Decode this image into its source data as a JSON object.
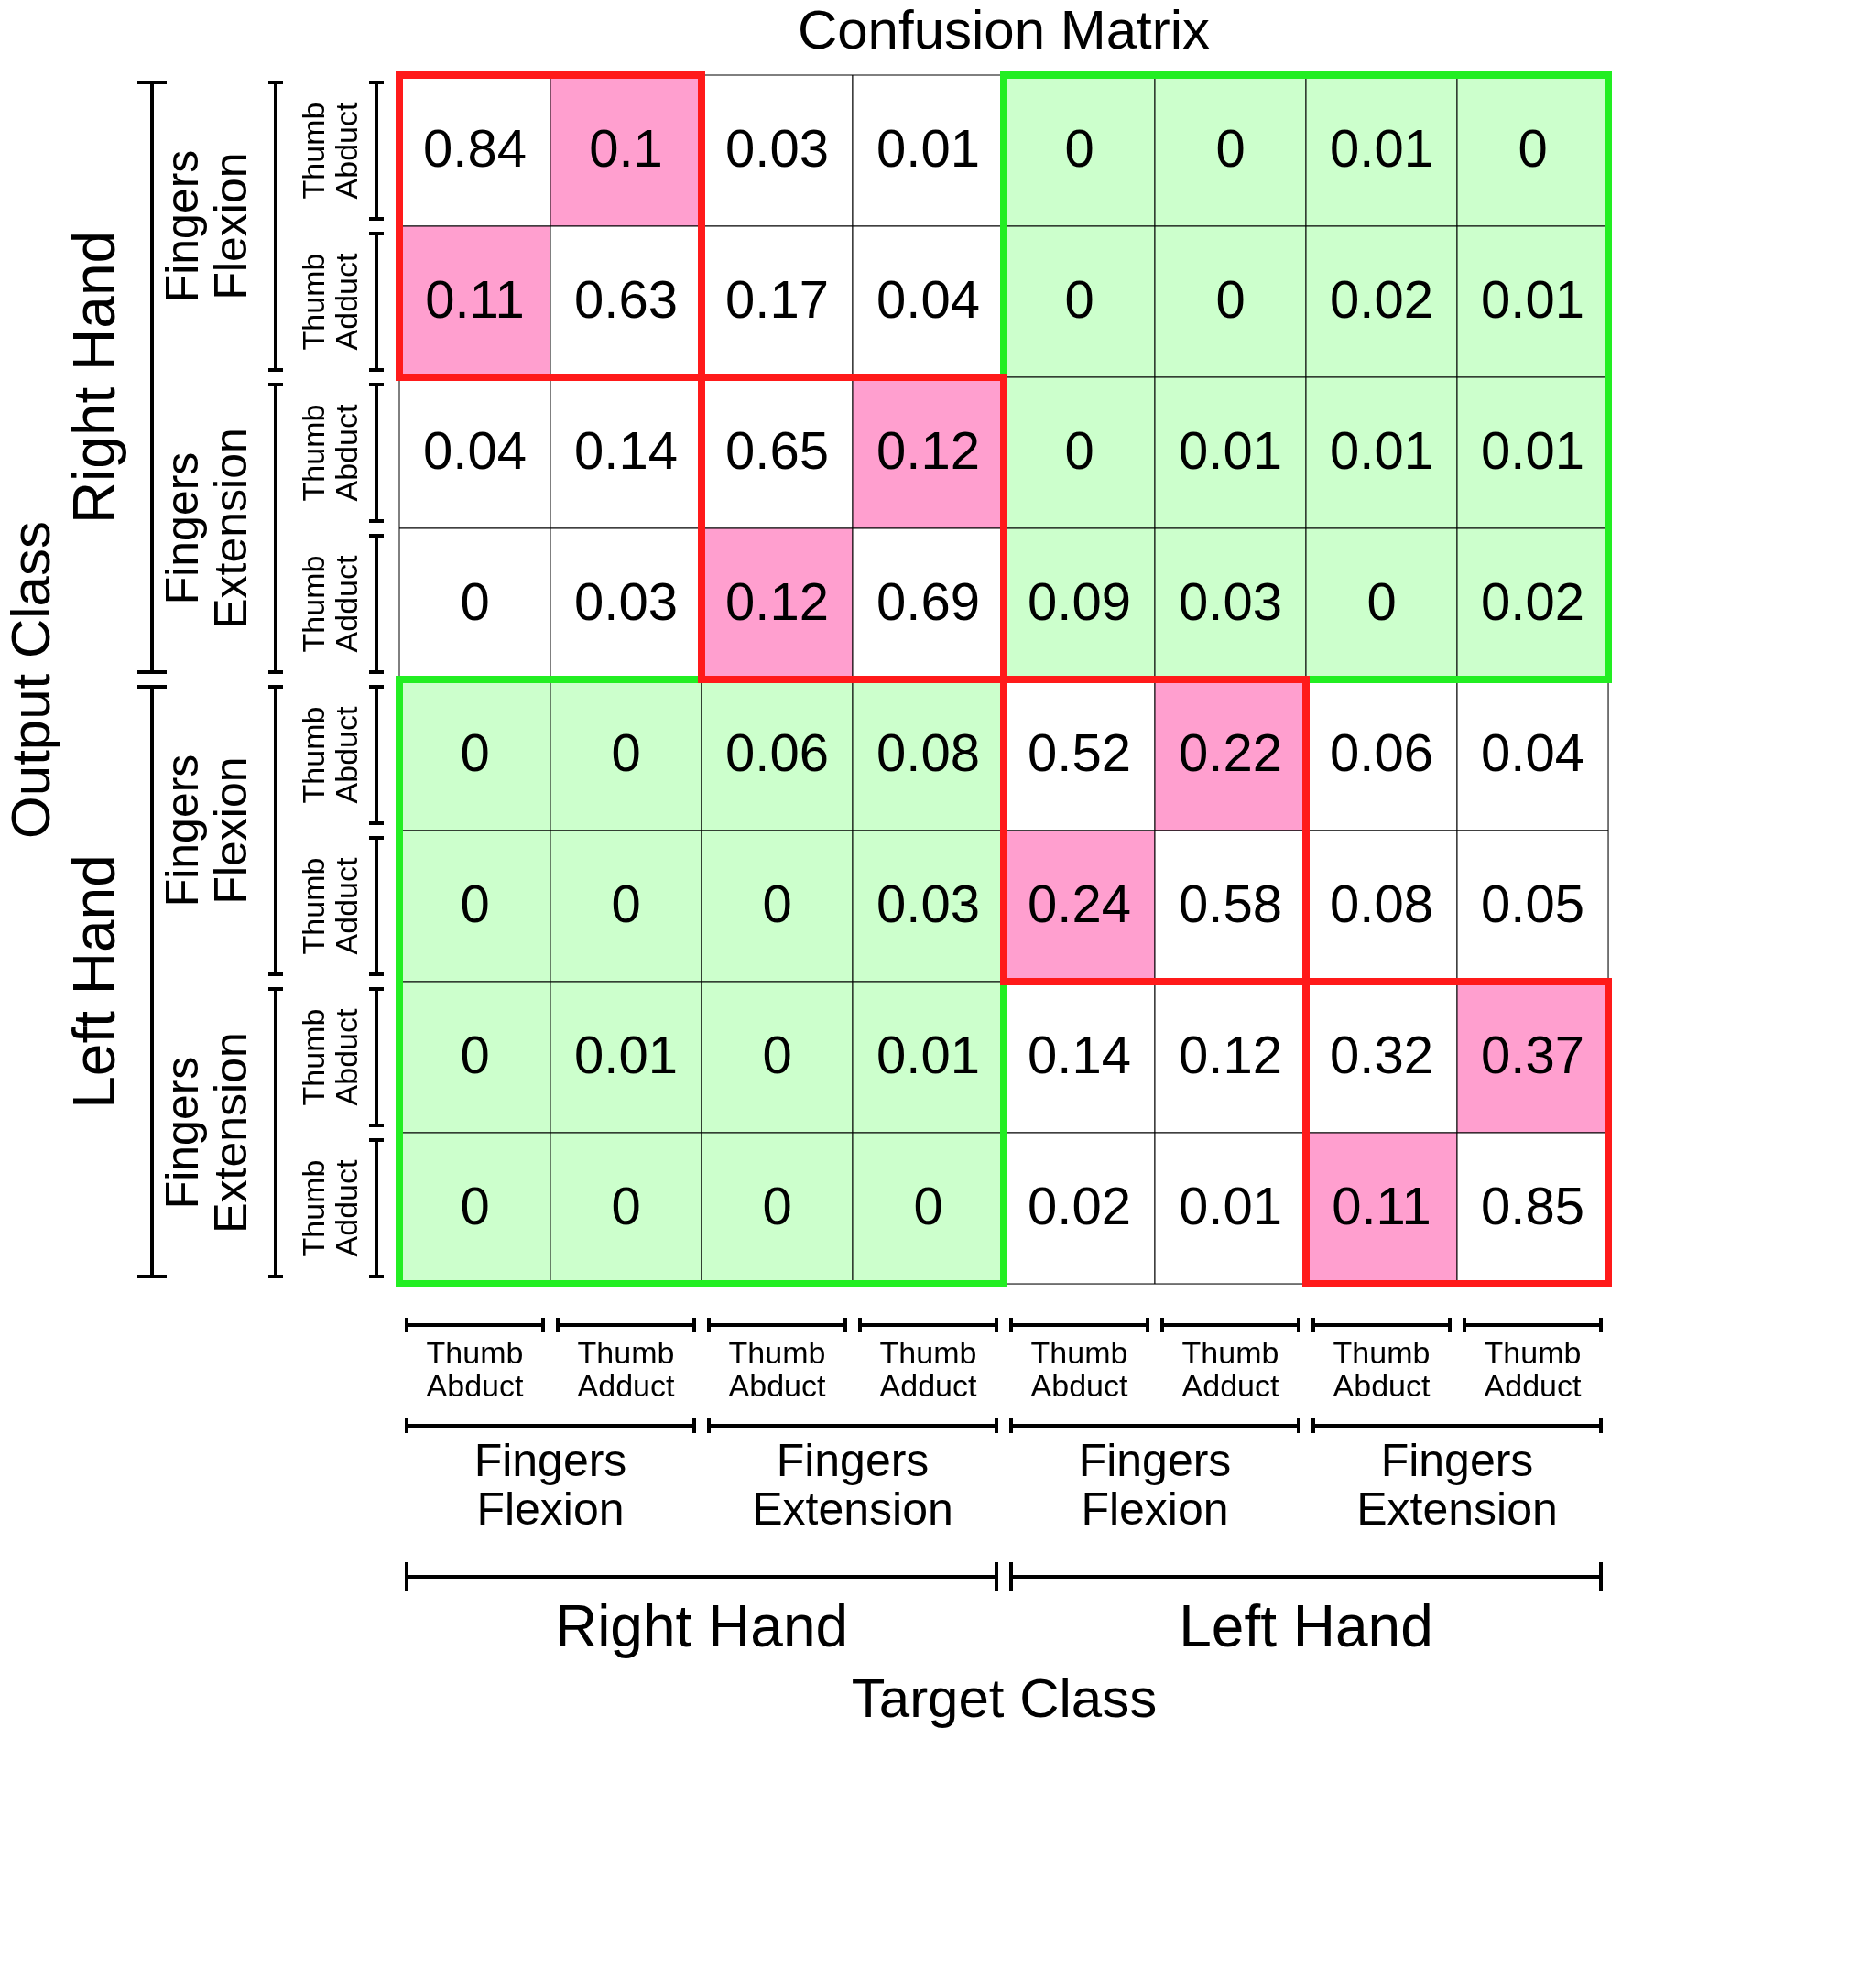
{
  "chart_data": {
    "type": "heatmap",
    "title": "Confusion Matrix",
    "xlabel": "Target Class",
    "ylabel": "Output Class",
    "categories": [
      "Thumb Abduct",
      "Thumb Adduct",
      "Thumb Abduct",
      "Thumb Adduct",
      "Thumb Abduct",
      "Thumb Adduct",
      "Thumb Abduct",
      "Thumb Adduct"
    ],
    "y_categories": [
      "Thumb Abduct",
      "Thumb Adduct",
      "Thumb Abduct",
      "Thumb Adduct",
      "Thumb Abduct",
      "Thumb Adduct",
      "Thumb Abduct",
      "Thumb Adduct"
    ],
    "annotations": [
      "Fingers Flexion",
      "Fingers Extension",
      "Fingers Flexion",
      "Fingers Extension",
      "Right Hand",
      "Left Hand"
    ],
    "cells": [
      [
        0.84,
        0.1,
        0.03,
        0.01,
        0,
        0,
        0.01,
        0
      ],
      [
        0.11,
        0.63,
        0.17,
        0.04,
        0,
        0,
        0.02,
        0.01
      ],
      [
        0.04,
        0.14,
        0.65,
        0.12,
        0,
        0.01,
        0.01,
        0.01
      ],
      [
        0,
        0.03,
        0.12,
        0.69,
        0.09,
        0.03,
        0,
        0.02
      ],
      [
        0,
        0,
        0.06,
        0.08,
        0.52,
        0.22,
        0.06,
        0.04
      ],
      [
        0,
        0,
        0,
        0.03,
        0.24,
        0.58,
        0.08,
        0.05
      ],
      [
        0,
        0.01,
        0,
        0.01,
        0.14,
        0.12,
        0.32,
        0.37
      ],
      [
        0,
        0,
        0,
        0,
        0.02,
        0.01,
        0.11,
        0.85
      ]
    ],
    "colors": [
      [
        "#ffffff",
        "#ff9fcf",
        "#ffffff",
        "#ffffff",
        "#ccffcc",
        "#ccffcc",
        "#ccffcc",
        "#ccffcc"
      ],
      [
        "#ff9fcf",
        "#ffffff",
        "#ffffff",
        "#ffffff",
        "#ccffcc",
        "#ccffcc",
        "#ccffcc",
        "#ccffcc"
      ],
      [
        "#ffffff",
        "#ffffff",
        "#ffffff",
        "#ff9fcf",
        "#ccffcc",
        "#ccffcc",
        "#ccffcc",
        "#ccffcc"
      ],
      [
        "#ffffff",
        "#ffffff",
        "#ff9fcf",
        "#ffffff",
        "#ccffcc",
        "#ccffcc",
        "#ccffcc",
        "#ccffcc"
      ],
      [
        "#ccffcc",
        "#ccffcc",
        "#ccffcc",
        "#ccffcc",
        "#ffffff",
        "#ff9fcf",
        "#ffffff",
        "#ffffff"
      ],
      [
        "#ccffcc",
        "#ccffcc",
        "#ccffcc",
        "#ccffcc",
        "#ff9fcf",
        "#ffffff",
        "#ffffff",
        "#ffffff"
      ],
      [
        "#ccffcc",
        "#ccffcc",
        "#ccffcc",
        "#ccffcc",
        "#ffffff",
        "#ffffff",
        "#ffffff",
        "#ff9fcf"
      ],
      [
        "#ccffcc",
        "#ccffcc",
        "#ccffcc",
        "#ccffcc",
        "#ffffff",
        "#ffffff",
        "#ff9fcf",
        "#ffffff"
      ]
    ],
    "data_labels": true
  }
}
